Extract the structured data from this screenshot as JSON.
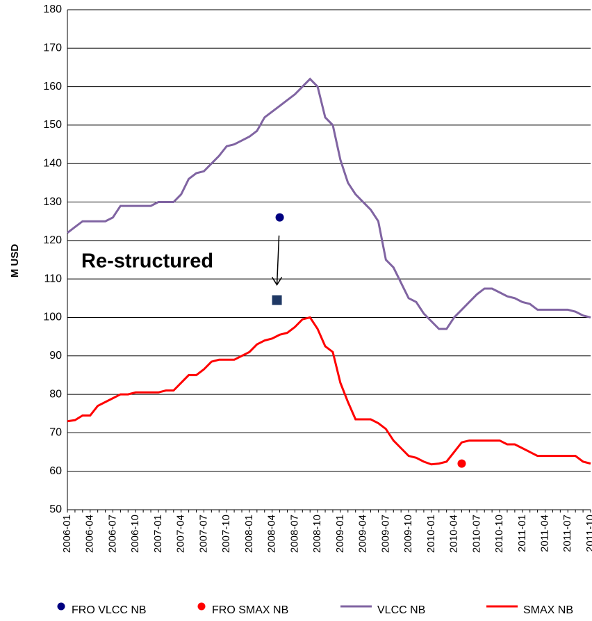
{
  "chart_data": {
    "type": "line",
    "ylabel": "M USD",
    "ylim": [
      50,
      180
    ],
    "yticks": [
      50,
      60,
      70,
      80,
      90,
      100,
      110,
      120,
      130,
      140,
      150,
      160,
      170,
      180
    ],
    "grid": true,
    "legend": "bottom",
    "categories": [
      "2006-01",
      null,
      null,
      "2006-04",
      null,
      null,
      "2006-07",
      null,
      null,
      "2006-10",
      null,
      null,
      "2007-01",
      null,
      null,
      "2007-04",
      null,
      null,
      "2007-07",
      null,
      null,
      "2007-10",
      null,
      null,
      "2008-01",
      null,
      null,
      "2008-04",
      null,
      null,
      "2008-07",
      null,
      null,
      "2008-10",
      null,
      null,
      "2009-01",
      null,
      null,
      "2009-04",
      null,
      null,
      "2009-07",
      null,
      null,
      "2009-10",
      null,
      null,
      "2010-01",
      null,
      null,
      "2010-04",
      null,
      null,
      "2010-07",
      null,
      null,
      "2010-10",
      null,
      null,
      "2011-01",
      null,
      null,
      "2011-04",
      null,
      null,
      "2011-07",
      null,
      null,
      "2011-10"
    ],
    "series": [
      {
        "name": "FRO VLCC NB",
        "type": "scatter",
        "color": "#000080",
        "values": [
          null,
          null,
          null,
          null,
          null,
          null,
          null,
          null,
          null,
          null,
          null,
          null,
          null,
          null,
          null,
          null,
          null,
          null,
          null,
          null,
          null,
          null,
          null,
          null,
          null,
          null,
          null,
          null,
          126,
          null,
          null,
          null,
          null,
          null,
          null,
          null,
          null,
          null,
          null,
          null,
          null,
          null,
          null,
          null,
          null,
          null,
          null,
          null,
          null,
          null,
          null,
          null,
          null,
          null,
          null,
          null,
          null,
          null,
          null,
          null,
          null,
          null,
          null,
          null,
          null,
          null,
          null,
          null,
          null,
          null
        ]
      },
      {
        "name": "FRO SMAX NB",
        "type": "scatter",
        "color": "#ff0000",
        "values": [
          null,
          null,
          null,
          null,
          null,
          null,
          null,
          null,
          null,
          null,
          null,
          null,
          null,
          null,
          null,
          null,
          null,
          null,
          null,
          null,
          null,
          null,
          null,
          null,
          null,
          null,
          null,
          null,
          null,
          null,
          null,
          null,
          null,
          null,
          null,
          null,
          null,
          null,
          null,
          null,
          null,
          null,
          null,
          null,
          null,
          null,
          null,
          null,
          null,
          null,
          null,
          null,
          62,
          null,
          null,
          null,
          null,
          null,
          null,
          null,
          null,
          null,
          null,
          null,
          null,
          null,
          null,
          null,
          null,
          null
        ]
      },
      {
        "name": "VLCC NB",
        "type": "line",
        "color": "#8064a2",
        "values": [
          122,
          123.5,
          125,
          125,
          125,
          125,
          126,
          129,
          129,
          129,
          129,
          129,
          130,
          130,
          130,
          132,
          136,
          137.5,
          138,
          140,
          142,
          144.5,
          145,
          146,
          147,
          148.5,
          152,
          153.5,
          155,
          156.5,
          158,
          160,
          162,
          160,
          152,
          150,
          141,
          135,
          132,
          130,
          128,
          125,
          115,
          113,
          109,
          105,
          104,
          101,
          99,
          97,
          97,
          100,
          102,
          104,
          106,
          107.5,
          107.5,
          106.5,
          105.5,
          105,
          104,
          103.5,
          102,
          102,
          102,
          102,
          102,
          101.5,
          100.5,
          100
        ]
      },
      {
        "name": "SMAX NB",
        "type": "line",
        "color": "#ff0000",
        "values": [
          73,
          73.3,
          74.5,
          74.5,
          77,
          78,
          79,
          80,
          80,
          80.5,
          80.5,
          80.5,
          80.5,
          81,
          81,
          83,
          85,
          85,
          86.5,
          88.5,
          89,
          89,
          89,
          90,
          91,
          93,
          94,
          94.5,
          95.5,
          96,
          97.5,
          99.5,
          100,
          97,
          92.5,
          91,
          83,
          78,
          73.5,
          73.5,
          73.5,
          72.5,
          71,
          68,
          66,
          64,
          63.5,
          62.5,
          61.8,
          62,
          62.5,
          65,
          67.5,
          68,
          68,
          68,
          68,
          68,
          67,
          67,
          66,
          65,
          64,
          64,
          64,
          64,
          64,
          64,
          62.5,
          62
        ]
      }
    ],
    "annotation": {
      "text": "Re-structured",
      "value": 104.5,
      "color": "#1f3864"
    }
  }
}
